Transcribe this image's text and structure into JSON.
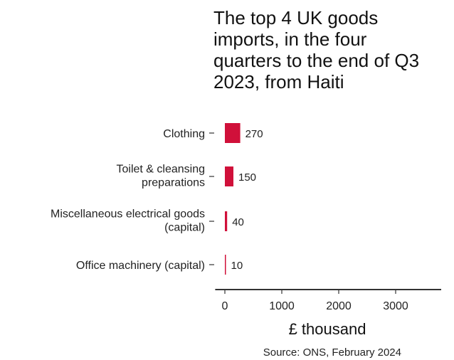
{
  "chart_data": {
    "type": "bar",
    "orientation": "horizontal",
    "title_lines": [
      "The top 4 UK goods",
      "imports, in the four",
      "quarters to the end of Q3",
      "2023, from Haiti"
    ],
    "categories": [
      [
        "Clothing"
      ],
      [
        "Toilet & cleansing",
        "preparations"
      ],
      [
        "Miscellaneous electrical goods",
        "(capital)"
      ],
      [
        "Office machinery (capital)"
      ]
    ],
    "values": [
      270,
      150,
      40,
      10
    ],
    "xlabel": "£ thousand",
    "xlim": [
      -170,
      3800
    ],
    "xticks": [
      0,
      1000,
      2000,
      3000
    ],
    "grid": false,
    "legend": "none",
    "bar_color": "#d0103a",
    "source": "Source: ONS, February 2024"
  }
}
